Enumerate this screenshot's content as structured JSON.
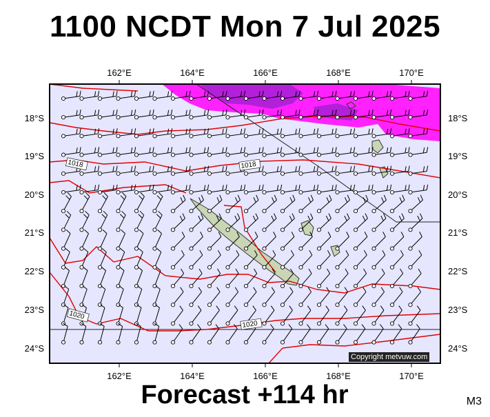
{
  "title": "1100 NCDT Mon 7 Jul 2025",
  "footer": "Forecast +114 hr",
  "model_code": "M3",
  "copyright": "Copyright metvuw.com",
  "lon_labels": [
    "162°E",
    "164°E",
    "166°E",
    "168°E",
    "170°E"
  ],
  "lat_labels": [
    "18°S",
    "19°S",
    "20°S",
    "21°S",
    "22°S",
    "23°S",
    "24°S"
  ],
  "isobar_labels": [
    "1018",
    "1018",
    "1020",
    "1020"
  ],
  "colors": {
    "ocean": "#e6e6ff",
    "isobar": "#e00000",
    "rain_light": "#ff22ff",
    "rain_heavy": "#a020d0",
    "land": "#c8d6b4",
    "coast": "#333333"
  }
}
